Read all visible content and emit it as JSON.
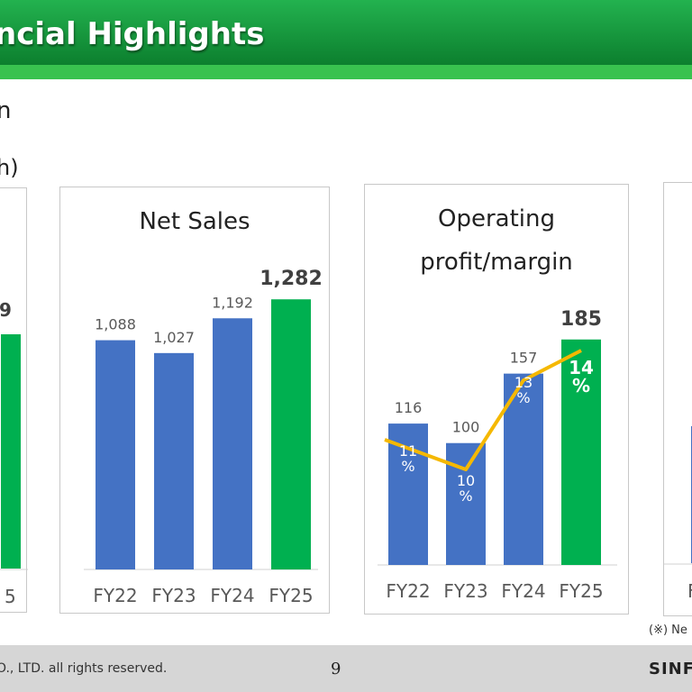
{
  "header": {
    "title": "ncial Highlights"
  },
  "subtitle": {
    "line1": "n",
    "line2": "h)"
  },
  "note": "(※) Ne",
  "footer": {
    "copyright": "O., LTD. all rights reserved.",
    "page": "9",
    "logo": "SINFO"
  },
  "colors": {
    "blue": "#4472c4",
    "green": "#00b050",
    "line": "#f5b800",
    "header": "#0f8f37"
  },
  "chart_data": [
    {
      "type": "bar",
      "title": "",
      "categories": [
        "5"
      ],
      "values": [
        null
      ],
      "visible_label": "9"
    },
    {
      "type": "bar",
      "title": "Net Sales",
      "categories": [
        "FY22",
        "FY23",
        "FY24",
        "FY25"
      ],
      "values": [
        1088,
        1027,
        1192,
        1282
      ],
      "labels": [
        "1,088",
        "1,027",
        "1,192",
        "1,282"
      ],
      "highlight_last": true,
      "ylim": [
        0,
        1300
      ]
    },
    {
      "type": "bar",
      "title": "Operating profit/margin",
      "title_lines": [
        "Operating",
        "profit/margin"
      ],
      "categories": [
        "FY22",
        "FY23",
        "FY24",
        "FY25"
      ],
      "values": [
        116,
        100,
        157,
        185
      ],
      "labels": [
        "116",
        "100",
        "157",
        "185"
      ],
      "highlight_last": true,
      "ylim": [
        0,
        190
      ],
      "line_series": {
        "values": [
          11,
          10,
          13,
          14
        ],
        "labels": [
          [
            "11",
            "%"
          ],
          [
            "10",
            "%"
          ],
          [
            "13",
            "%"
          ],
          [
            "14",
            "%"
          ]
        ]
      }
    },
    {
      "type": "bar",
      "title": "",
      "categories": [
        "F"
      ],
      "values": [
        null
      ]
    }
  ]
}
